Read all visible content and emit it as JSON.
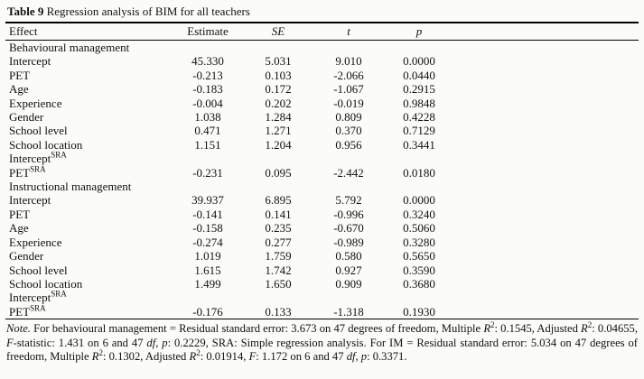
{
  "table": {
    "title_label": "Table 9",
    "title_text": " Regression analysis of BIM for all teachers",
    "columns": [
      "Effect",
      "Estimate",
      "SE",
      "t",
      "p"
    ],
    "sections": [
      {
        "header": "Behavioural management",
        "rows": [
          {
            "label": "Intercept",
            "sup": "",
            "indent": 1,
            "values": [
              "45.330",
              "5.031",
              "9.010",
              "0.0000"
            ]
          },
          {
            "label": "PET",
            "sup": "",
            "indent": 2,
            "values": [
              "-0.213",
              "0.103",
              "-2.066",
              "0.0440"
            ]
          },
          {
            "label": "Age",
            "sup": "",
            "indent": 2,
            "values": [
              "-0.183",
              "0.172",
              "-1.067",
              "0.2915"
            ]
          },
          {
            "label": "Experience",
            "sup": "",
            "indent": 2,
            "values": [
              "-0.004",
              "0.202",
              "-0.019",
              "0.9848"
            ]
          },
          {
            "label": "Gender",
            "sup": "",
            "indent": 2,
            "values": [
              "1.038",
              "1.284",
              "0.809",
              "0.4228"
            ]
          },
          {
            "label": "School level",
            "sup": "",
            "indent": 2,
            "values": [
              "0.471",
              "1.271",
              "0.370",
              "0.7129"
            ]
          },
          {
            "label": "School location",
            "sup": "",
            "indent": 2,
            "values": [
              "1.151",
              "1.204",
              "0.956",
              "0.3441"
            ]
          },
          {
            "label": "Intercept",
            "sup": "SRA",
            "indent": 1,
            "values": []
          },
          {
            "label": "PET",
            "sup": "SRA",
            "indent": 2,
            "values": [
              "-0.231",
              "0.095",
              "-2.442",
              "0.0180"
            ]
          }
        ]
      },
      {
        "header": "Instructional management",
        "rows": [
          {
            "label": "Intercept",
            "sup": "",
            "indent": 1,
            "values": [
              "39.937",
              "6.895",
              "5.792",
              "0.0000"
            ]
          },
          {
            "label": "PET",
            "sup": "",
            "indent": 2,
            "values": [
              "-0.141",
              "0.141",
              "-0.996",
              "0.3240"
            ]
          },
          {
            "label": "Age",
            "sup": "",
            "indent": 2,
            "values": [
              "-0.158",
              "0.235",
              "-0.670",
              "0.5060"
            ]
          },
          {
            "label": "Experience",
            "sup": "",
            "indent": 2,
            "values": [
              "-0.274",
              "0.277",
              "-0.989",
              "0.3280"
            ]
          },
          {
            "label": "Gender",
            "sup": "",
            "indent": 2,
            "values": [
              "1.019",
              "1.759",
              "0.580",
              "0.5650"
            ]
          },
          {
            "label": "School level",
            "sup": "",
            "indent": 2,
            "values": [
              "1.615",
              "1.742",
              "0.927",
              "0.3590"
            ]
          },
          {
            "label": "School location",
            "sup": "",
            "indent": 2,
            "values": [
              "1.499",
              "1.650",
              "0.909",
              "0.3680"
            ]
          },
          {
            "label": "Intercept",
            "sup": "SRA",
            "indent": 1,
            "values": []
          },
          {
            "label": "PET",
            "sup": "SRA",
            "indent": 2,
            "values": [
              "-0.176",
              "0.133",
              "-1.318",
              "0.1930"
            ]
          }
        ]
      }
    ],
    "note": {
      "segments": [
        {
          "t": "Note.",
          "i": true
        },
        {
          "t": " For behavioural management = Residual standard error: 3.673 on 47 degrees of freedom, Multiple "
        },
        {
          "t": "R",
          "i": true
        },
        {
          "t": "2",
          "sup": true
        },
        {
          "t": ": 0.1545, Adjusted "
        },
        {
          "t": "R",
          "i": true
        },
        {
          "t": "2",
          "sup": true
        },
        {
          "t": ": 0.04655, "
        },
        {
          "t": "F",
          "i": true
        },
        {
          "t": "-statistic: 1.431 on 6 and 47 "
        },
        {
          "t": "df",
          "i": true
        },
        {
          "t": ", "
        },
        {
          "t": "p",
          "i": true
        },
        {
          "t": ": 0.2229, SRA: Simple regression analysis. For IM = Residual standard error: 5.034 on 47 degrees of freedom, Multiple "
        },
        {
          "t": "R",
          "i": true
        },
        {
          "t": "2",
          "sup": true
        },
        {
          "t": ": 0.1302, Adjusted "
        },
        {
          "t": "R",
          "i": true
        },
        {
          "t": "2",
          "sup": true
        },
        {
          "t": ": 0.01914, "
        },
        {
          "t": "F",
          "i": true
        },
        {
          "t": ": 1.172 on 6 and 47 "
        },
        {
          "t": "df",
          "i": true
        },
        {
          "t": ", "
        },
        {
          "t": "p",
          "i": true
        },
        {
          "t": ": 0.3371."
        }
      ]
    }
  }
}
